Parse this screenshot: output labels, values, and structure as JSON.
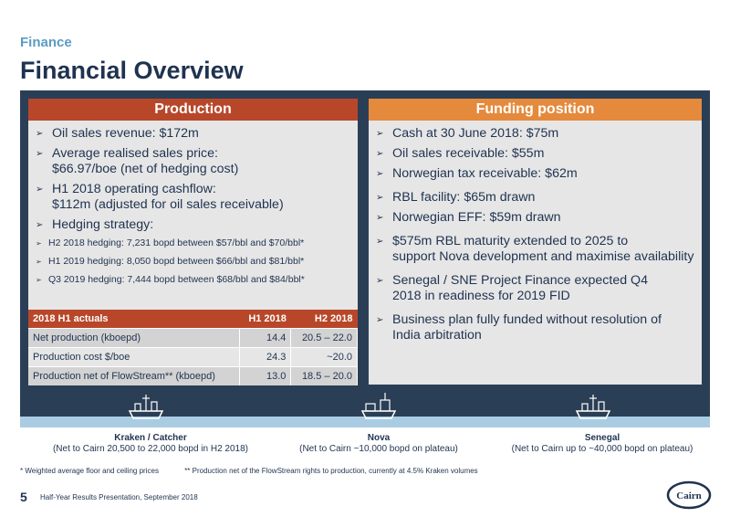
{
  "header": {
    "section": "Finance",
    "title": "Financial Overview"
  },
  "production": {
    "title": "Production",
    "bullets": [
      {
        "line1": "Oil sales revenue: $172m",
        "line2": ""
      },
      {
        "line1": "Average realised sales price:",
        "line2": "$66.97/boe (net of hedging cost)"
      },
      {
        "line1": "H1 2018 operating cashflow:",
        "line2": "$112m (adjusted for oil sales receivable)"
      },
      {
        "line1": "Hedging strategy:",
        "line2": ""
      }
    ],
    "hedging": [
      "H2 2018 hedging: 7,231 bopd between $57/bbl and $70/bbl*",
      "H1 2019 hedging: 8,050 bopd between $66/bbl and $81/bbl*",
      "Q3 2019 hedging: 7,444 bopd between $68/bbl and $84/bbl*"
    ],
    "table": {
      "headers": [
        "2018 H1 actuals",
        "H1 2018",
        "H2 2018"
      ],
      "rows": [
        [
          "Net production (kboepd)",
          "14.4",
          "20.5 – 22.0"
        ],
        [
          "Production cost $/boe",
          "24.3",
          "~20.0"
        ],
        [
          "Production net of FlowStream** (kboepd)",
          "13.0",
          "18.5 – 20.0"
        ]
      ]
    }
  },
  "funding": {
    "title": "Funding position",
    "bullets": [
      {
        "line1": "Cash at 30 June 2018: $75m",
        "line2": ""
      },
      {
        "line1": "Oil sales receivable: $55m",
        "line2": ""
      },
      {
        "line1": "Norwegian tax receivable: $62m",
        "line2": ""
      },
      {
        "line1": "RBL facility: $65m drawn",
        "line2": ""
      },
      {
        "line1": "Norwegian EFF: $59m drawn",
        "line2": ""
      },
      {
        "line1": "$575m RBL maturity extended to 2025 to",
        "line2": "support Nova development and maximise availability"
      },
      {
        "line1": "Senegal / SNE Project Finance expected Q4",
        "line2": "2018 in readiness for 2019 FID"
      },
      {
        "line1": "Business plan fully funded without resolution of",
        "line2": "India arbitration"
      }
    ]
  },
  "locations": [
    {
      "name": "Kraken / Catcher",
      "detail": "(Net to Cairn 20,500 to 22,000 bopd in H2 2018)"
    },
    {
      "name": "Nova",
      "detail": "(Net to Cairn ~10,000 bopd on plateau)"
    },
    {
      "name": "Senegal",
      "detail": "(Net to Cairn up to ~40,000 bopd on plateau)"
    }
  ],
  "footnotes": [
    "* Weighted average floor and ceiling prices",
    "** Production net of the FlowStream rights to production, currently at 4.5% Kraken volumes"
  ],
  "footer": {
    "page": "5",
    "text": "Half-Year Results Presentation, September 2018",
    "logo": "Cairn"
  },
  "colors": {
    "navy": "#1f3350",
    "frame": "#2a3e56",
    "production": "#b8472a",
    "funding": "#e58a3c",
    "accent": "#5a9bc4"
  }
}
